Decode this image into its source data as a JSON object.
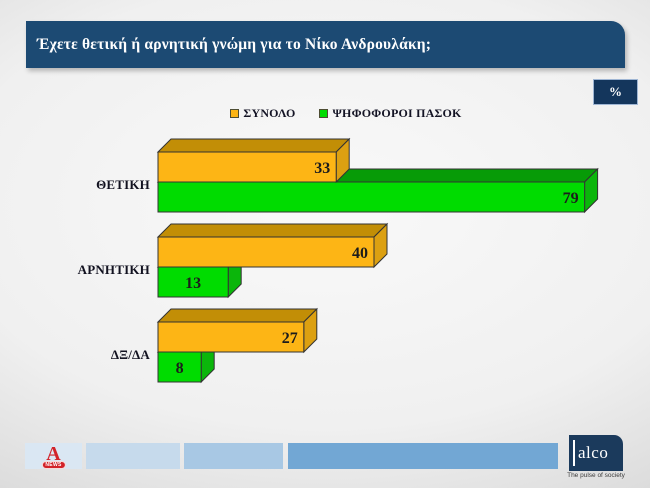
{
  "title": "Έχετε θετική ή αρνητική γνώμη για το Νίκο Ανδρουλάκη;",
  "percent_badge": "%",
  "colors": {
    "header_bg": "#1c4a73",
    "badge_bg": "#14365c",
    "alco_bg": "#1b3a5c",
    "value_label": "#1c1c1c"
  },
  "chart_data": {
    "type": "bar",
    "orientation": "horizontal",
    "style": "3d",
    "unit": "%",
    "xlim": [
      0,
      100
    ],
    "legend_position": "top",
    "categories": [
      "ΘΕΤΙΚΗ",
      "ΑΡΝΗΤΙΚΗ",
      "ΔΞ/ΔΑ"
    ],
    "series": [
      {
        "name": "ΣΥΝΟΛΟ",
        "color": "#fdb515",
        "color_top": "#c28e06",
        "color_side": "#dca011",
        "values": [
          33,
          40,
          27
        ]
      },
      {
        "name": "ΨΗΦΟΦΟΡΟΙ ΠΑΣΟΚ",
        "color": "#00dc00",
        "color_top": "#079b07",
        "color_side": "#0bb60b",
        "values": [
          79,
          13,
          8
        ]
      }
    ]
  },
  "footer": {
    "alpha": {
      "letter": "A",
      "badge": "NEWS"
    },
    "alco": {
      "name": "alco",
      "tagline": "The pulse of society"
    }
  }
}
